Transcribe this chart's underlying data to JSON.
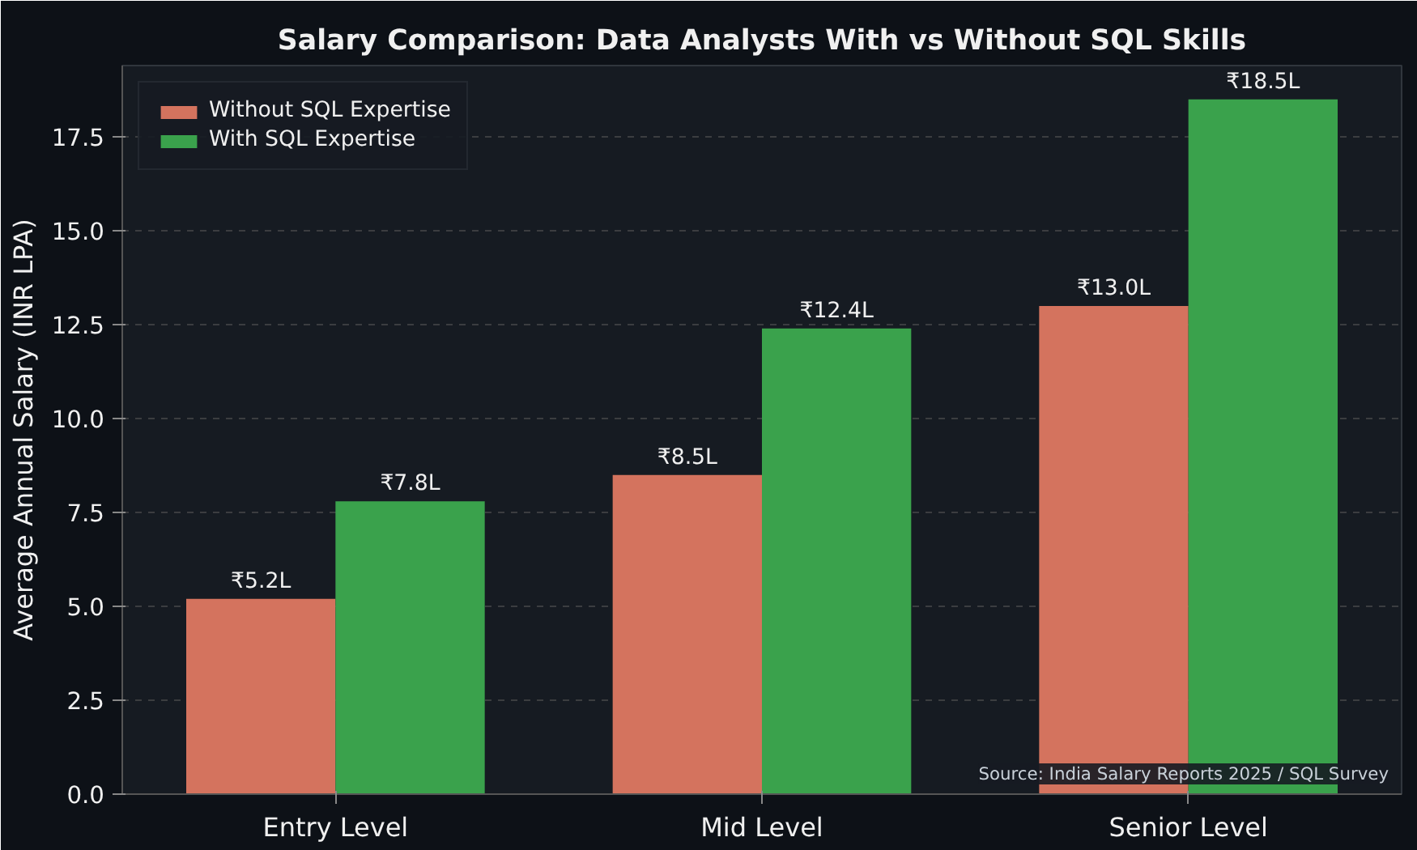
{
  "chart_data": {
    "type": "bar",
    "title": "Salary Comparison: Data Analysts With vs Without SQL Skills",
    "ylabel": "Average Annual Salary (INR LPA)",
    "categories": [
      "Entry Level",
      "Mid Level",
      "Senior Level"
    ],
    "series": [
      {
        "name": "Without SQL Expertise",
        "color": "#d4735e",
        "values": [
          5.2,
          8.5,
          13.0
        ],
        "value_labels": [
          "₹5.2L",
          "₹8.5L",
          "₹13.0L"
        ]
      },
      {
        "name": "With SQL Expertise",
        "color": "#3aa24c",
        "values": [
          7.8,
          12.4,
          18.5
        ],
        "value_labels": [
          "₹7.8L",
          "₹12.4L",
          "₹18.5L"
        ]
      }
    ],
    "ylim": [
      0,
      19.4
    ],
    "yticks": [
      {
        "value": 0,
        "label": "0.0"
      },
      {
        "value": 2.5,
        "label": "2.5"
      },
      {
        "value": 5,
        "label": "5.0"
      },
      {
        "value": 7.5,
        "label": "7.5"
      },
      {
        "value": 10,
        "label": "10.0"
      },
      {
        "value": 12.5,
        "label": "12.5"
      },
      {
        "value": 15,
        "label": "15.0"
      },
      {
        "value": 17.5,
        "label": "17.5"
      }
    ],
    "grid": "y",
    "legend": "top left",
    "annotations": [
      "Source: India Salary Reports 2025 / SQL Survey"
    ]
  }
}
